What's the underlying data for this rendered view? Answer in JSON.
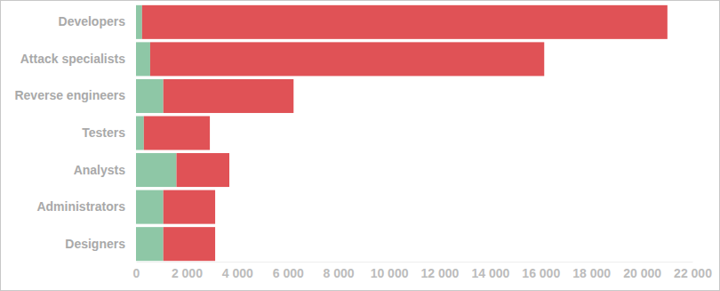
{
  "chart_data": {
    "type": "bar",
    "orientation": "horizontal",
    "stacked": true,
    "categories": [
      "Developers",
      "Attack specialists",
      "Reverse engineers",
      "Testers",
      "Analysts",
      "Administrators",
      "Designers"
    ],
    "series": [
      {
        "color": "#8ec7a6",
        "values": [
          240,
          560,
          1080,
          310,
          1600,
          1080,
          1080
        ]
      },
      {
        "color": "#e05256",
        "values": [
          20770,
          15580,
          5150,
          2610,
          2090,
          2050,
          2050
        ]
      }
    ],
    "xlim": [
      0,
      22000
    ],
    "xticks": [
      0,
      {
        "value": 2000,
        "label": "2 000"
      },
      {
        "value": 4000,
        "label": "4 000"
      },
      {
        "value": 6000,
        "label": "6 000"
      },
      {
        "value": 8000,
        "label": "8 000"
      },
      {
        "value": 10000,
        "label": "10 000"
      },
      {
        "value": 12000,
        "label": "12 000"
      },
      {
        "value": 14000,
        "label": "14 000"
      },
      {
        "value": 16000,
        "label": "16 000"
      },
      {
        "value": 18000,
        "label": "18 000"
      },
      {
        "value": 20000,
        "label": "20 000"
      },
      {
        "value": 22000,
        "label": "22 000"
      }
    ]
  }
}
